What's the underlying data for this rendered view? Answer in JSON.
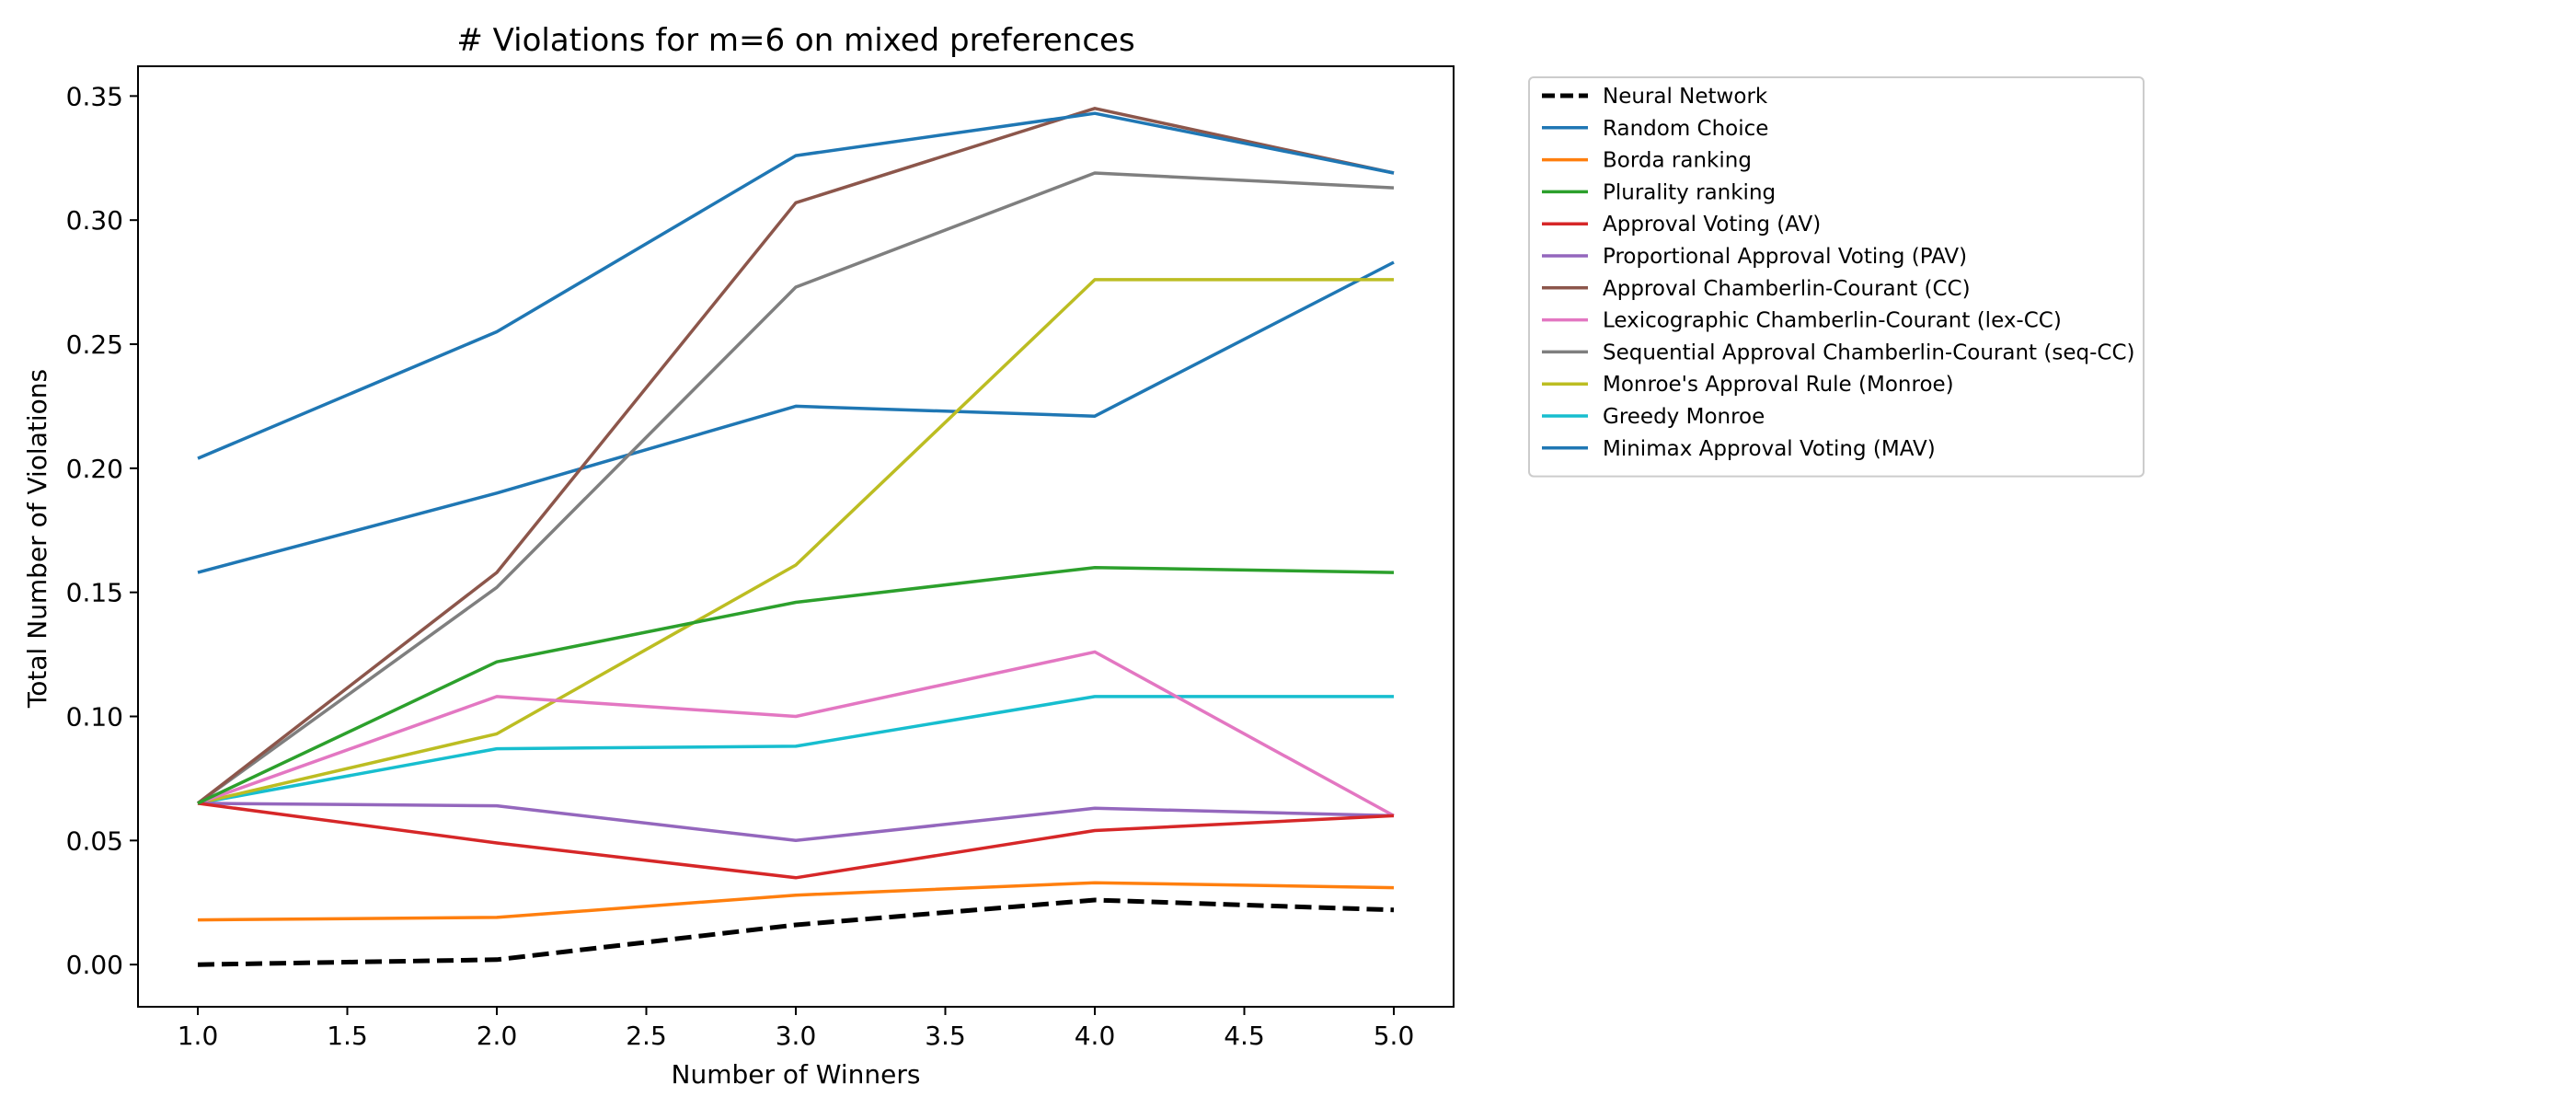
{
  "chart_data": {
    "type": "line",
    "title": "# Violations for m=6 on mixed preferences",
    "xlabel": "Number of Winners",
    "ylabel": "Total Number of Violations",
    "xlim": [
      0.8,
      5.2
    ],
    "ylim": [
      -0.017,
      0.362
    ],
    "xticks": [
      "1.0",
      "1.5",
      "2.0",
      "2.5",
      "3.0",
      "3.5",
      "4.0",
      "4.5",
      "5.0"
    ],
    "yticks": [
      "0.00",
      "0.05",
      "0.10",
      "0.15",
      "0.20",
      "0.25",
      "0.30",
      "0.35"
    ],
    "grid": false,
    "legend_position": "outside-right",
    "x": [
      1.0,
      2.0,
      3.0,
      4.0,
      5.0
    ],
    "series": [
      {
        "name": "Neural Network",
        "color": "#000000",
        "dashed": true,
        "values": [
          0.0,
          0.002,
          0.016,
          0.026,
          0.022
        ]
      },
      {
        "name": "Random Choice",
        "color": "#1f77b4",
        "dashed": false,
        "values": [
          0.204,
          0.255,
          0.326,
          0.343,
          0.319
        ]
      },
      {
        "name": "Borda ranking",
        "color": "#ff7f0e",
        "dashed": false,
        "values": [
          0.018,
          0.019,
          0.028,
          0.033,
          0.031
        ]
      },
      {
        "name": "Plurality ranking",
        "color": "#2ca02c",
        "dashed": false,
        "values": [
          0.065,
          0.122,
          0.146,
          0.16,
          0.158
        ]
      },
      {
        "name": "Approval Voting (AV)",
        "color": "#d62728",
        "dashed": false,
        "values": [
          0.065,
          0.049,
          0.035,
          0.054,
          0.06
        ]
      },
      {
        "name": "Proportional Approval Voting (PAV)",
        "color": "#9467bd",
        "dashed": false,
        "values": [
          0.065,
          0.064,
          0.05,
          0.063,
          0.06
        ]
      },
      {
        "name": "Approval Chamberlin-Courant (CC)",
        "color": "#8c564b",
        "dashed": false,
        "values": [
          0.065,
          0.158,
          0.307,
          0.345,
          0.319
        ]
      },
      {
        "name": "Lexicographic Chamberlin-Courant (lex-CC)",
        "color": "#e377c2",
        "dashed": false,
        "values": [
          0.065,
          0.108,
          0.1,
          0.126,
          0.06
        ]
      },
      {
        "name": "Sequential Approval Chamberlin-Courant (seq-CC)",
        "color": "#7f7f7f",
        "dashed": false,
        "values": [
          0.065,
          0.152,
          0.273,
          0.319,
          0.313
        ]
      },
      {
        "name": "Monroe's Approval Rule (Monroe)",
        "color": "#bcbd22",
        "dashed": false,
        "values": [
          0.065,
          0.093,
          0.161,
          0.276,
          0.276
        ]
      },
      {
        "name": "Greedy Monroe",
        "color": "#17becf",
        "dashed": false,
        "values": [
          0.065,
          0.087,
          0.088,
          0.108,
          0.108
        ]
      },
      {
        "name": "Minimax Approval Voting (MAV)",
        "color": "#1f77b4",
        "dashed": false,
        "values": [
          0.158,
          0.19,
          0.225,
          0.221,
          0.283
        ]
      }
    ]
  }
}
